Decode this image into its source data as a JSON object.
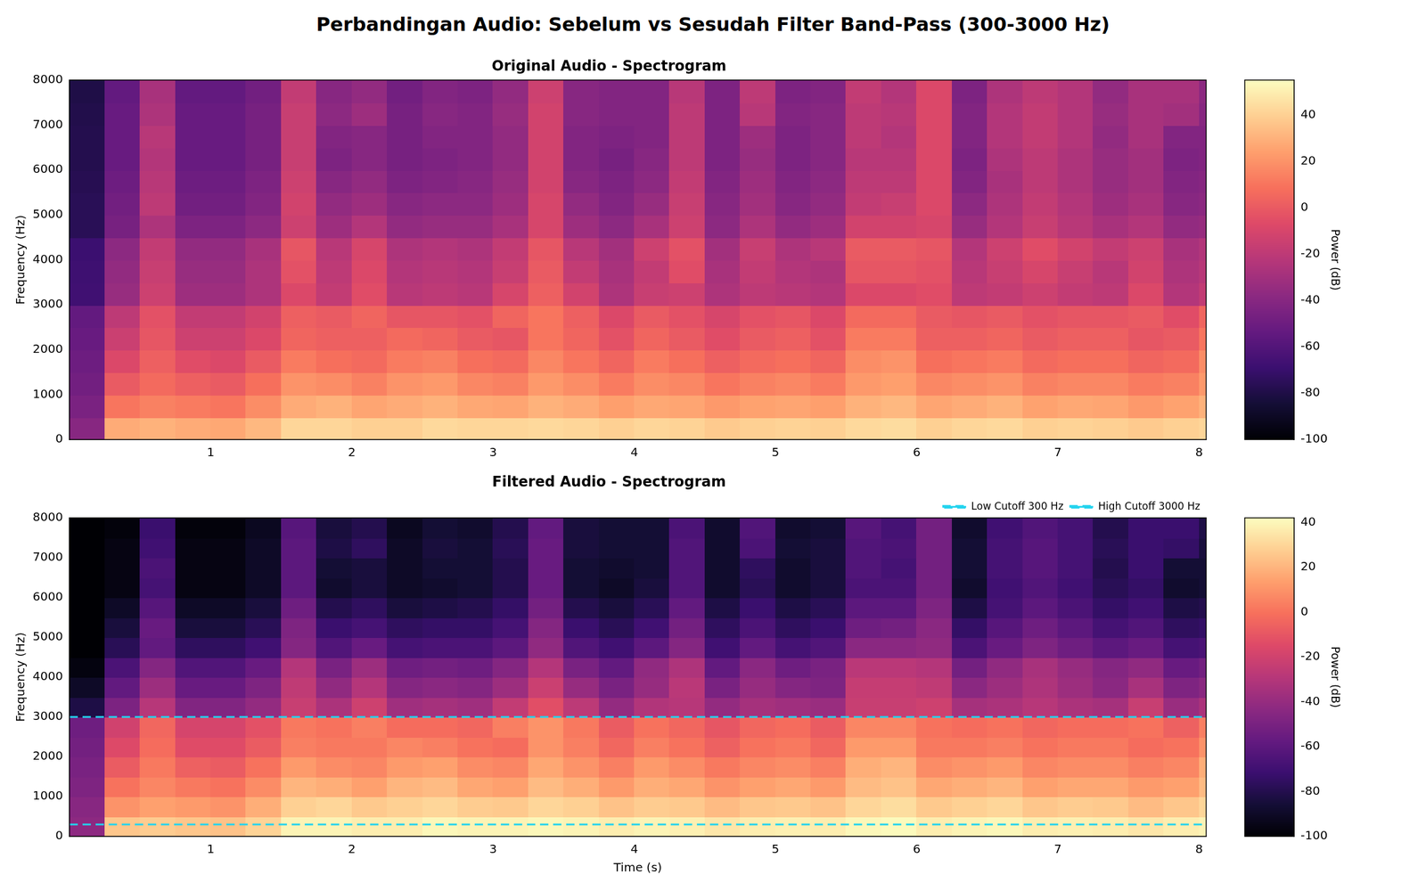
{
  "title": "Perbandingan Audio: Sebelum vs Sesudah Filter Band-Pass (300-3000 Hz)",
  "chart_data": [
    {
      "type": "heatmap",
      "title": "Original Audio - Spectrogram",
      "y_label": "Frequency (Hz)",
      "xlim": [
        0,
        8.05
      ],
      "xticks": [
        1,
        2,
        3,
        4,
        5,
        6,
        7,
        8
      ],
      "ylim": [
        0,
        8000
      ],
      "yticks": [
        0,
        1000,
        2000,
        3000,
        4000,
        5000,
        6000,
        7000,
        8000
      ],
      "grid": false,
      "x_edges": [
        0,
        0.25,
        0.5,
        0.75,
        1,
        1.25,
        1.5,
        1.75,
        2,
        2.25,
        2.5,
        2.75,
        3,
        3.25,
        3.5,
        3.75,
        4,
        4.25,
        4.5,
        4.75,
        5,
        5.25,
        5.5,
        5.75,
        6,
        6.25,
        6.5,
        6.75,
        7,
        7.25,
        7.5,
        7.75,
        8,
        8.05
      ],
      "y_edges": [
        0,
        500,
        1000,
        1500,
        2000,
        2500,
        3000,
        3500,
        4000,
        4500,
        5000,
        5500,
        6000,
        6500,
        7000,
        7500,
        8000
      ],
      "cells": [
        [
          -40,
          28,
          30,
          28,
          27,
          32,
          42,
          42,
          40,
          40,
          43,
          42,
          42,
          43,
          42,
          40,
          42,
          41,
          38,
          40,
          41,
          40,
          43,
          44,
          40,
          42,
          43,
          40,
          41,
          40,
          38,
          40,
          42
        ],
        [
          -45,
          10,
          14,
          12,
          10,
          18,
          28,
          30,
          26,
          28,
          30,
          27,
          26,
          30,
          28,
          24,
          27,
          26,
          22,
          25,
          26,
          24,
          30,
          32,
          26,
          28,
          30,
          25,
          27,
          26,
          22,
          25,
          30
        ],
        [
          -48,
          0,
          6,
          2,
          0,
          8,
          20,
          18,
          14,
          20,
          22,
          16,
          14,
          22,
          18,
          12,
          18,
          16,
          10,
          14,
          16,
          12,
          22,
          24,
          16,
          18,
          20,
          14,
          16,
          16,
          12,
          14,
          22
        ],
        [
          -50,
          -8,
          2,
          -6,
          -8,
          0,
          12,
          8,
          6,
          12,
          14,
          8,
          6,
          16,
          10,
          4,
          12,
          8,
          2,
          6,
          8,
          4,
          18,
          20,
          8,
          10,
          12,
          6,
          8,
          8,
          4,
          6,
          18
        ],
        [
          -52,
          -15,
          -2,
          -14,
          -14,
          -8,
          4,
          2,
          2,
          6,
          4,
          0,
          -2,
          10,
          4,
          -4,
          4,
          0,
          -6,
          0,
          2,
          -4,
          12,
          12,
          2,
          2,
          4,
          0,
          2,
          2,
          -2,
          0,
          10
        ],
        [
          -54,
          -20,
          -4,
          -18,
          -18,
          -12,
          2,
          0,
          4,
          -2,
          -2,
          -4,
          4,
          10,
          2,
          -8,
          0,
          -4,
          -10,
          -4,
          -2,
          -8,
          6,
          6,
          0,
          -2,
          0,
          -4,
          -2,
          -2,
          0,
          -6,
          4
        ],
        [
          -67,
          -34,
          -14,
          -32,
          -32,
          -26,
          -8,
          -18,
          -6,
          -22,
          -20,
          -22,
          -10,
          2,
          -12,
          -26,
          -16,
          -14,
          -26,
          -20,
          -22,
          -24,
          -8,
          -8,
          -6,
          -20,
          -18,
          -14,
          -18,
          -20,
          -8,
          -24,
          -18
        ],
        [
          -68,
          -36,
          -16,
          -34,
          -34,
          -26,
          -4,
          -20,
          -8,
          -24,
          -22,
          -24,
          -16,
          0,
          -18,
          -28,
          -18,
          -6,
          -28,
          -18,
          -24,
          -26,
          -2,
          -2,
          -4,
          -22,
          -16,
          -10,
          -16,
          -22,
          -12,
          -26,
          -22
        ],
        [
          -69,
          -38,
          -18,
          -36,
          -36,
          -28,
          -2,
          -22,
          -10,
          -26,
          -24,
          -26,
          -18,
          -2,
          -22,
          -30,
          -14,
          -4,
          -30,
          -16,
          -26,
          -22,
          0,
          0,
          -2,
          -24,
          -14,
          -6,
          -12,
          -18,
          -14,
          -28,
          -24
        ],
        [
          -76,
          -46,
          -26,
          -44,
          -44,
          -38,
          -14,
          -32,
          -24,
          -36,
          -34,
          -34,
          -28,
          -10,
          -32,
          -38,
          -28,
          -14,
          -38,
          -26,
          -36,
          -32,
          -12,
          -12,
          -10,
          -34,
          -24,
          -16,
          -22,
          -28,
          -24,
          -36,
          -34
        ],
        [
          -76,
          -48,
          -20,
          -48,
          -48,
          -42,
          -12,
          -36,
          -32,
          -40,
          -38,
          -38,
          -32,
          -10,
          -36,
          -42,
          -34,
          -16,
          -40,
          -30,
          -40,
          -36,
          -18,
          -16,
          -8,
          -38,
          -26,
          -18,
          -24,
          -32,
          -28,
          -40,
          -38
        ],
        [
          -77,
          -50,
          -22,
          -50,
          -50,
          -44,
          -14,
          -40,
          -36,
          -44,
          -42,
          -40,
          -34,
          -12,
          -40,
          -44,
          -38,
          -18,
          -42,
          -32,
          -42,
          -38,
          -20,
          -20,
          -8,
          -42,
          -28,
          -20,
          -26,
          -34,
          -30,
          -42,
          -40
        ],
        [
          -78,
          -52,
          -24,
          -52,
          -52,
          -46,
          -16,
          -44,
          -40,
          -46,
          -44,
          -42,
          -36,
          -12,
          -42,
          -46,
          -40,
          -20,
          -44,
          -34,
          -44,
          -40,
          -22,
          -22,
          -8,
          -44,
          -26,
          -20,
          -26,
          -34,
          -30,
          -44,
          -42
        ],
        [
          -78,
          -52,
          -22,
          -52,
          -52,
          -46,
          -16,
          -42,
          -40,
          -46,
          -42,
          -42,
          -36,
          -12,
          -42,
          -44,
          -42,
          -20,
          -44,
          -32,
          -44,
          -40,
          -20,
          -24,
          -8,
          -42,
          -24,
          -18,
          -24,
          -36,
          -28,
          -42,
          -42
        ],
        [
          -79,
          -52,
          -26,
          -52,
          -52,
          -46,
          -16,
          -38,
          -32,
          -46,
          -40,
          -42,
          -34,
          -12,
          -40,
          -42,
          -42,
          -20,
          -44,
          -22,
          -42,
          -40,
          -20,
          -22,
          -8,
          -42,
          -24,
          -18,
          -24,
          -34,
          -28,
          -30,
          -40
        ],
        [
          -80,
          -54,
          -28,
          -54,
          -54,
          -48,
          -18,
          -40,
          -36,
          -48,
          -42,
          -44,
          -36,
          -14,
          -40,
          -42,
          -42,
          -22,
          -44,
          -20,
          -44,
          -42,
          -18,
          -24,
          -8,
          -44,
          -26,
          -20,
          -24,
          -36,
          -28,
          -28,
          -38
        ]
      ],
      "colorbar": {
        "label": "Power (dB)",
        "range": [
          -100,
          55
        ],
        "ticks": [
          -100,
          -80,
          -60,
          -40,
          -20,
          0,
          20,
          40
        ]
      }
    },
    {
      "type": "heatmap",
      "title": "Filtered Audio - Spectrogram",
      "x_label": "Time (s)",
      "y_label": "Frequency (Hz)",
      "xlim": [
        0,
        8.05
      ],
      "xticks": [
        1,
        2,
        3,
        4,
        5,
        6,
        7,
        8
      ],
      "ylim": [
        0,
        8000
      ],
      "yticks": [
        0,
        1000,
        2000,
        3000,
        4000,
        5000,
        6000,
        7000,
        8000
      ],
      "grid": false,
      "legend": "upper right",
      "x_edges": [
        0,
        0.25,
        0.5,
        0.75,
        1,
        1.25,
        1.5,
        1.75,
        2,
        2.25,
        2.5,
        2.75,
        3,
        3.25,
        3.5,
        3.75,
        4,
        4.25,
        4.5,
        4.75,
        5,
        5.25,
        5.5,
        5.75,
        6,
        6.25,
        6.5,
        6.75,
        7,
        7.25,
        7.5,
        7.75,
        8,
        8.05
      ],
      "y_edges": [
        0,
        500,
        1000,
        1500,
        2000,
        2500,
        3000,
        3500,
        4000,
        4500,
        5000,
        5500,
        6000,
        6500,
        7000,
        7500,
        8000
      ],
      "cells": [
        [
          -43,
          25,
          27,
          25,
          24,
          29,
          39,
          39,
          37,
          37,
          40,
          39,
          39,
          40,
          39,
          37,
          39,
          38,
          35,
          37,
          38,
          37,
          40,
          41,
          37,
          39,
          40,
          37,
          38,
          37,
          35,
          37,
          39
        ],
        [
          -45,
          10,
          14,
          12,
          10,
          18,
          28,
          30,
          26,
          28,
          30,
          27,
          26,
          30,
          28,
          24,
          27,
          26,
          22,
          25,
          26,
          24,
          30,
          32,
          26,
          28,
          30,
          25,
          27,
          26,
          22,
          25,
          30
        ],
        [
          -48,
          0,
          6,
          2,
          0,
          8,
          20,
          18,
          14,
          20,
          22,
          16,
          14,
          22,
          18,
          12,
          18,
          16,
          10,
          14,
          16,
          12,
          22,
          24,
          16,
          18,
          20,
          14,
          16,
          16,
          12,
          14,
          22
        ],
        [
          -50,
          -8,
          2,
          -6,
          -8,
          0,
          12,
          8,
          6,
          12,
          14,
          8,
          6,
          16,
          10,
          4,
          12,
          8,
          2,
          6,
          8,
          4,
          18,
          20,
          8,
          10,
          12,
          6,
          8,
          8,
          4,
          6,
          18
        ],
        [
          -52,
          -15,
          -2,
          -14,
          -14,
          -8,
          4,
          2,
          2,
          6,
          4,
          0,
          -2,
          10,
          4,
          -4,
          4,
          0,
          -6,
          0,
          2,
          -4,
          12,
          12,
          2,
          2,
          4,
          0,
          2,
          2,
          -2,
          0,
          10
        ],
        [
          -54,
          -20,
          -4,
          -18,
          -18,
          -12,
          2,
          0,
          4,
          -2,
          -2,
          -4,
          4,
          10,
          2,
          -8,
          0,
          -4,
          -10,
          -4,
          -2,
          -8,
          6,
          6,
          0,
          -2,
          0,
          -4,
          -2,
          -2,
          0,
          -6,
          4
        ],
        [
          -82,
          -49,
          -29,
          -47,
          -47,
          -41,
          -23,
          -33,
          -21,
          -37,
          -35,
          -37,
          -25,
          -13,
          -27,
          -41,
          -31,
          -29,
          -41,
          -35,
          -37,
          -39,
          -23,
          -23,
          -21,
          -35,
          -33,
          -29,
          -33,
          -35,
          -23,
          -39,
          -33
        ],
        [
          -90,
          -58,
          -38,
          -56,
          -56,
          -48,
          -26,
          -42,
          -30,
          -46,
          -44,
          -46,
          -38,
          -22,
          -40,
          -50,
          -40,
          -28,
          -50,
          -40,
          -46,
          -48,
          -24,
          -24,
          -26,
          -44,
          -38,
          -32,
          -38,
          -44,
          -34,
          -48,
          -44
        ],
        [
          -97,
          -66,
          -46,
          -64,
          -64,
          -56,
          -30,
          -50,
          -38,
          -54,
          -52,
          -54,
          -46,
          -30,
          -50,
          -58,
          -42,
          -32,
          -58,
          -44,
          -54,
          -50,
          -28,
          -28,
          -30,
          -52,
          -42,
          -34,
          -40,
          -46,
          -42,
          -56,
          -52
        ],
        [
          -100,
          -78,
          -58,
          -76,
          -76,
          -70,
          -46,
          -64,
          -56,
          -68,
          -66,
          -66,
          -60,
          -42,
          -64,
          -70,
          -60,
          -46,
          -70,
          -58,
          -68,
          -64,
          -44,
          -44,
          -42,
          -66,
          -56,
          -48,
          -54,
          -60,
          -56,
          -68,
          -66
        ],
        [
          -100,
          -84,
          -56,
          -84,
          -84,
          -78,
          -48,
          -72,
          -68,
          -76,
          -74,
          -74,
          -68,
          -46,
          -72,
          -78,
          -70,
          -52,
          -76,
          -66,
          -76,
          -72,
          -54,
          -52,
          -44,
          -74,
          -62,
          -54,
          -60,
          -68,
          -64,
          -76,
          -74
        ],
        [
          -100,
          -90,
          -62,
          -90,
          -90,
          -84,
          -54,
          -80,
          -76,
          -84,
          -82,
          -80,
          -74,
          -52,
          -80,
          -84,
          -78,
          -58,
          -82,
          -72,
          -82,
          -78,
          -60,
          -60,
          -48,
          -82,
          -68,
          -60,
          -66,
          -74,
          -70,
          -82,
          -80
        ],
        [
          -100,
          -96,
          -68,
          -96,
          -96,
          -90,
          -60,
          -88,
          -84,
          -90,
          -88,
          -86,
          -80,
          -56,
          -86,
          -90,
          -84,
          -64,
          -88,
          -78,
          -88,
          -84,
          -66,
          -66,
          -52,
          -88,
          -70,
          -64,
          -70,
          -78,
          -74,
          -88,
          -86
        ],
        [
          -100,
          -96,
          -66,
          -96,
          -96,
          -90,
          -60,
          -86,
          -84,
          -90,
          -86,
          -86,
          -80,
          -56,
          -86,
          -88,
          -86,
          -64,
          -88,
          -76,
          -88,
          -84,
          -64,
          -68,
          -52,
          -86,
          -68,
          -62,
          -68,
          -80,
          -72,
          -86,
          -86
        ],
        [
          -100,
          -96,
          -70,
          -96,
          -96,
          -90,
          -60,
          -82,
          -76,
          -90,
          -84,
          -86,
          -78,
          -56,
          -84,
          -86,
          -86,
          -64,
          -88,
          -66,
          -86,
          -84,
          -64,
          -66,
          -52,
          -86,
          -68,
          -62,
          -68,
          -78,
          -72,
          -74,
          -84
        ],
        [
          -100,
          -98,
          -72,
          -98,
          -98,
          -92,
          -62,
          -84,
          -80,
          -92,
          -86,
          -88,
          -80,
          -58,
          -84,
          -86,
          -86,
          -66,
          -88,
          -64,
          -88,
          -86,
          -62,
          -68,
          -52,
          -88,
          -70,
          -64,
          -68,
          -80,
          -72,
          -72,
          -82
        ]
      ],
      "hlines": [
        {
          "name": "Low Cutoff 300 Hz",
          "value": 300,
          "color": "#22d3ee",
          "line_style": "dashed"
        },
        {
          "name": "High Cutoff 3000 Hz",
          "value": 3000,
          "color": "#22d3ee",
          "line_style": "dashed"
        }
      ],
      "colorbar": {
        "label": "Power (dB)",
        "range": [
          -100,
          42
        ],
        "ticks": [
          -100,
          -80,
          -60,
          -40,
          -20,
          0,
          20,
          40
        ]
      }
    }
  ]
}
